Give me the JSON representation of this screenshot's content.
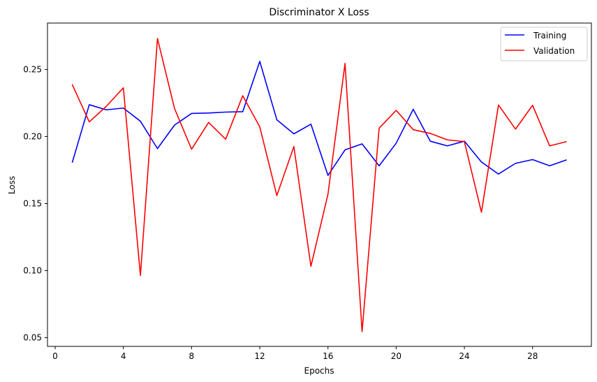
{
  "chart_data": {
    "type": "line",
    "title": "Discriminator X Loss",
    "xlabel": "Epochs",
    "ylabel": "Loss",
    "xlim": [
      -0.45,
      31.45
    ],
    "ylim": [
      0.0435,
      0.2846
    ],
    "xticks": [
      0,
      4,
      8,
      12,
      16,
      20,
      24,
      28
    ],
    "yticks": [
      0.05,
      0.1,
      0.15,
      0.2,
      0.25
    ],
    "ytick_labels": [
      "0.05",
      "0.10",
      "0.15",
      "0.20",
      "0.25"
    ],
    "grid": false,
    "legend_position": "top-right",
    "x": [
      1,
      2,
      3,
      4,
      5,
      6,
      7,
      8,
      9,
      10,
      11,
      12,
      13,
      14,
      15,
      16,
      17,
      18,
      19,
      20,
      21,
      22,
      23,
      24,
      25,
      26,
      27,
      28,
      29,
      30
    ],
    "series": [
      {
        "name": "Training",
        "color": "#0000ff",
        "values": [
          0.1805,
          0.2237,
          0.2199,
          0.2212,
          0.2114,
          0.191,
          0.2085,
          0.2172,
          0.2175,
          0.2182,
          0.2185,
          0.256,
          0.2125,
          0.202,
          0.2092,
          0.171,
          0.19,
          0.1945,
          0.1781,
          0.195,
          0.2203,
          0.1965,
          0.193,
          0.1965,
          0.181,
          0.172,
          0.18,
          0.1828,
          0.1782,
          0.1826
        ]
      },
      {
        "name": "Validation",
        "color": "#ff0000",
        "values": [
          0.2388,
          0.2109,
          0.2225,
          0.2363,
          0.0964,
          0.2731,
          0.2209,
          0.1905,
          0.2105,
          0.198,
          0.2304,
          0.2072,
          0.156,
          0.1925,
          0.1032,
          0.157,
          0.2545,
          0.0545,
          0.2062,
          0.2195,
          0.2051,
          0.2023,
          0.1975,
          0.1962,
          0.1435,
          0.2235,
          0.2055,
          0.2233,
          0.193,
          0.1962
        ]
      }
    ]
  }
}
